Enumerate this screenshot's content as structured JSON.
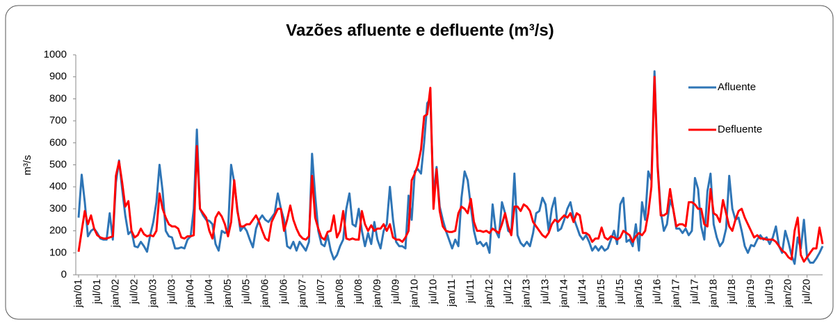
{
  "chart_data": {
    "type": "line",
    "title": "Vazões afluente e defluente (m³/s)",
    "y_label": "m³/s",
    "legend": "upper-right",
    "ylim": [
      0,
      1000
    ],
    "yticks": [
      0,
      100,
      200,
      300,
      400,
      500,
      600,
      700,
      800,
      900,
      1000
    ],
    "categories": [
      "jan/01",
      null,
      null,
      null,
      null,
      null,
      "jul/01",
      null,
      null,
      null,
      null,
      null,
      "jan/02",
      null,
      null,
      null,
      null,
      null,
      "jul/02",
      null,
      null,
      null,
      null,
      null,
      "jan/03",
      null,
      null,
      null,
      null,
      null,
      "jul/03",
      null,
      null,
      null,
      null,
      null,
      "jan/04",
      null,
      null,
      null,
      null,
      null,
      "jul/04",
      null,
      null,
      null,
      null,
      null,
      "jan/05",
      null,
      null,
      null,
      null,
      null,
      "jul/05",
      null,
      null,
      null,
      null,
      null,
      "jan/06",
      null,
      null,
      null,
      null,
      null,
      "jul/06",
      null,
      null,
      null,
      null,
      null,
      "jan/07",
      null,
      null,
      null,
      null,
      null,
      "jul/07",
      null,
      null,
      null,
      null,
      null,
      "jan/08",
      null,
      null,
      null,
      null,
      null,
      "jul/08",
      null,
      null,
      null,
      null,
      null,
      "jan/09",
      null,
      null,
      null,
      null,
      null,
      "jul/09",
      null,
      null,
      null,
      null,
      null,
      "jan/10",
      null,
      null,
      null,
      null,
      null,
      "jul/10",
      null,
      null,
      null,
      null,
      null,
      "jan/11",
      null,
      null,
      null,
      null,
      null,
      "jul/11",
      null,
      null,
      null,
      null,
      null,
      "jan/12",
      null,
      null,
      null,
      null,
      null,
      "jul/12",
      null,
      null,
      null,
      null,
      null,
      "jan/13",
      null,
      null,
      null,
      null,
      null,
      "jul/13",
      null,
      null,
      null,
      null,
      null,
      "jan/14",
      null,
      null,
      null,
      null,
      null,
      "jul/14",
      null,
      null,
      null,
      null,
      null,
      "jan/15",
      null,
      null,
      null,
      null,
      null,
      "jul/15",
      null,
      null,
      null,
      null,
      null,
      "jan/16",
      null,
      null,
      null,
      null,
      null,
      "jul/16",
      null,
      null,
      null,
      null,
      null,
      "jan/17",
      null,
      null,
      null,
      null,
      null,
      "jul/17",
      null,
      null,
      null,
      null,
      null,
      "jan/18",
      null,
      null,
      null,
      null,
      null,
      "jul/18",
      null,
      null,
      null,
      null,
      null,
      "jan/19",
      null,
      null,
      null,
      null,
      null,
      "jul/19",
      null,
      null,
      null,
      null,
      null,
      "jan/20",
      null,
      null,
      null,
      null,
      null,
      "jul/20",
      null,
      null,
      null,
      null,
      null
    ],
    "series": [
      {
        "name": "Afluente",
        "color": "#2e75b6",
        "values": [
          260,
          455,
          330,
          175,
          200,
          210,
          190,
          165,
          160,
          160,
          280,
          160,
          420,
          520,
          390,
          270,
          185,
          200,
          130,
          125,
          150,
          130,
          105,
          180,
          240,
          330,
          500,
          380,
          200,
          175,
          170,
          120,
          120,
          125,
          120,
          160,
          175,
          300,
          660,
          300,
          270,
          250,
          245,
          230,
          140,
          110,
          200,
          190,
          200,
          500,
          420,
          300,
          200,
          220,
          200,
          160,
          125,
          210,
          250,
          270,
          250,
          240,
          260,
          280,
          370,
          300,
          250,
          130,
          120,
          150,
          110,
          150,
          130,
          110,
          150,
          550,
          360,
          200,
          140,
          130,
          180,
          110,
          70,
          90,
          130,
          160,
          300,
          370,
          230,
          220,
          300,
          200,
          130,
          190,
          140,
          240,
          160,
          120,
          200,
          230,
          400,
          250,
          150,
          130,
          130,
          120,
          360,
          250,
          470,
          480,
          460,
          600,
          780,
          800,
          360,
          490,
          310,
          250,
          200,
          160,
          120,
          160,
          130,
          350,
          470,
          430,
          310,
          200,
          140,
          150,
          130,
          145,
          100,
          320,
          200,
          170,
          330,
          280,
          200,
          190,
          460,
          180,
          145,
          130,
          150,
          130,
          190,
          280,
          290,
          350,
          320,
          200,
          300,
          350,
          200,
          210,
          250,
          300,
          330,
          260,
          220,
          180,
          160,
          180,
          150,
          110,
          130,
          110,
          130,
          110,
          120,
          160,
          200,
          140,
          320,
          350,
          150,
          160,
          130,
          230,
          110,
          330,
          250,
          470,
          430,
          925,
          500,
          290,
          200,
          230,
          340,
          300,
          210,
          210,
          190,
          210,
          180,
          200,
          440,
          390,
          220,
          160,
          380,
          460,
          230,
          170,
          130,
          150,
          210,
          450,
          300,
          250,
          260,
          200,
          130,
          100,
          135,
          130,
          160,
          180,
          160,
          170,
          140,
          170,
          220,
          130,
          100,
          200,
          150,
          90,
          50,
          170,
          120,
          250,
          80,
          55,
          55,
          75,
          100,
          130
        ]
      },
      {
        "name": "Defluente",
        "color": "#ff0000",
        "values": [
          105,
          200,
          290,
          230,
          270,
          210,
          180,
          170,
          165,
          165,
          170,
          175,
          450,
          515,
          420,
          310,
          335,
          200,
          170,
          180,
          210,
          185,
          175,
          180,
          175,
          200,
          370,
          300,
          260,
          230,
          220,
          220,
          210,
          170,
          165,
          175,
          175,
          180,
          585,
          300,
          280,
          260,
          200,
          165,
          260,
          285,
          265,
          230,
          175,
          240,
          430,
          290,
          220,
          220,
          230,
          230,
          250,
          270,
          240,
          200,
          165,
          155,
          240,
          270,
          300,
          300,
          200,
          250,
          315,
          250,
          210,
          180,
          165,
          160,
          175,
          450,
          260,
          210,
          170,
          160,
          195,
          200,
          270,
          170,
          200,
          290,
          165,
          160,
          165,
          160,
          160,
          290,
          230,
          200,
          225,
          200,
          210,
          210,
          230,
          200,
          230,
          170,
          160,
          160,
          150,
          170,
          200,
          430,
          460,
          500,
          570,
          720,
          730,
          850,
          300,
          480,
          290,
          220,
          200,
          195,
          195,
          200,
          280,
          310,
          300,
          280,
          345,
          240,
          200,
          200,
          195,
          200,
          190,
          210,
          200,
          190,
          230,
          280,
          220,
          180,
          310,
          310,
          290,
          320,
          310,
          290,
          240,
          220,
          200,
          180,
          170,
          190,
          230,
          250,
          240,
          255,
          270,
          260,
          280,
          240,
          280,
          270,
          190,
          190,
          180,
          150,
          165,
          165,
          215,
          170,
          160,
          175,
          170,
          160,
          170,
          200,
          190,
          180,
          150,
          175,
          190,
          180,
          200,
          280,
          400,
          900,
          490,
          270,
          270,
          280,
          390,
          300,
          220,
          230,
          230,
          220,
          330,
          330,
          320,
          300,
          300,
          230,
          220,
          390,
          280,
          270,
          240,
          340,
          280,
          220,
          200,
          250,
          290,
          300,
          260,
          230,
          200,
          170,
          180,
          165,
          165,
          160,
          160,
          160,
          150,
          130,
          110,
          100,
          80,
          70,
          200,
          260,
          90,
          60,
          80,
          100,
          120,
          120,
          215,
          140
        ]
      }
    ]
  }
}
